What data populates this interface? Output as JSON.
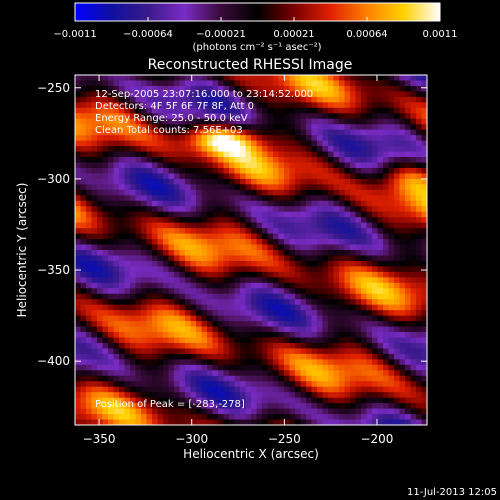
{
  "colorbar": {
    "min": -0.0011,
    "max": 0.0011,
    "tick_labels": [
      "−0.0011",
      "−0.00064",
      "−0.00021",
      "0.00021",
      "0.00064",
      "0.0011"
    ],
    "unit_label": "(photons cm⁻² s⁻¹ asec⁻²)"
  },
  "timestamp": "11-Jul-2013 12:05",
  "chart_data": {
    "type": "heatmap",
    "title": "Reconstructed RHESSI Image",
    "xlabel": "Heliocentric X (arcsec)",
    "ylabel": "Heliocentric Y (arcsec)",
    "xlim": [
      -363,
      -173
    ],
    "ylim": [
      -435,
      -243
    ],
    "x_ticks": [
      -350,
      -300,
      -250,
      -200
    ],
    "y_ticks": [
      -250,
      -300,
      -350,
      -400
    ],
    "x_tick_labels": [
      "−350",
      "−300",
      "−250",
      "−200"
    ],
    "y_tick_labels": [
      "−250",
      "−300",
      "−350",
      "−400"
    ],
    "colormap": [
      "#0000ff",
      "#1010a0",
      "#3a1a8a",
      "#7a2cc4",
      "#3a0a3a",
      "#000000",
      "#7a0000",
      "#e02000",
      "#ff8000",
      "#ffd000",
      "#ffffff"
    ],
    "annotations": [
      "12-Sep-2005 23:07:16.000 to 23:14:52.000",
      "Detectors: 4F 5F 6F 7F 8F, Att 0",
      "Energy Range: 25.0 - 50.0 keV",
      "Clean    Total counts: 7.56E+03"
    ],
    "peak_label": "Position of Peak = [-283,-278]",
    "peak": [
      -283,
      -278
    ]
  }
}
